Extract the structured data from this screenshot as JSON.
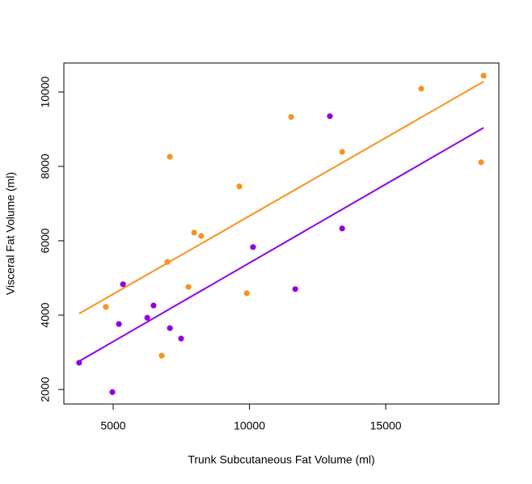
{
  "chart_data": {
    "type": "scatter",
    "x_label": "Trunk Subcutaneous Fat Volume (ml)",
    "y_label": "Visceral Fat Volume (ml)",
    "xlim": [
      3190,
      19150
    ],
    "ylim": [
      1610,
      10780
    ],
    "xticks": [
      5000,
      10000,
      15000
    ],
    "yticks": [
      2000,
      4000,
      6000,
      8000,
      10000
    ],
    "grid": false,
    "series": [
      {
        "color": "#f7931e",
        "x": [
          4730,
          6990,
          7080,
          7760,
          7970,
          8230,
          6780,
          9630,
          9900,
          11530,
          13400,
          16300,
          18500,
          18590
        ],
        "values": [
          4220,
          5430,
          8260,
          4760,
          6220,
          6130,
          2910,
          7460,
          4590,
          9330,
          8390,
          10090,
          8110,
          10440
        ],
        "fit": {
          "x": [
            3750,
            18590
          ],
          "y": [
            4040,
            10280
          ]
        }
      },
      {
        "color": "#9000e6",
        "x": [
          3750,
          4970,
          5210,
          5360,
          6250,
          6480,
          7080,
          7490,
          10130,
          11680,
          12950,
          13400
        ],
        "values": [
          2720,
          1930,
          3760,
          4830,
          3930,
          4260,
          3650,
          3370,
          5830,
          4700,
          9350,
          6330
        ],
        "fit": {
          "x": [
            3750,
            18590
          ],
          "y": [
            2760,
            9040
          ]
        }
      }
    ]
  }
}
